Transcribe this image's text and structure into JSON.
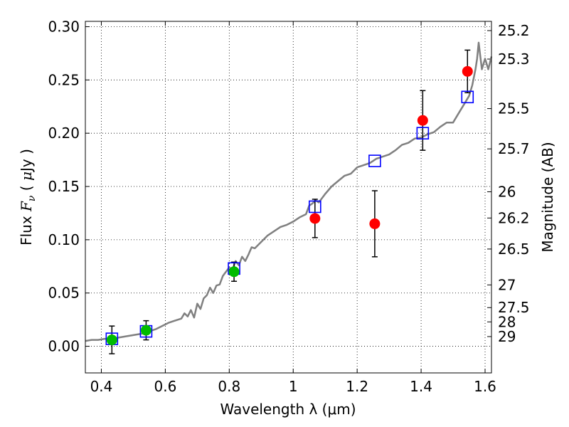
{
  "chart_data": {
    "type": "scatter",
    "xlabel": "Wavelength  λ (μm)",
    "ylabel_parts": {
      "prefix": "Flux  ",
      "symbol": "F",
      "sub": "ν",
      "mid": "  ( ",
      "unit_mu": "μ",
      "unit_rest": "Jy )"
    },
    "y2label": "Magnitude (AB)",
    "xlim": [
      0.35,
      1.62
    ],
    "ylim": [
      -0.025,
      0.305
    ],
    "grid": true,
    "xticks": [
      0.4,
      0.6,
      0.8,
      1.0,
      1.2,
      1.4,
      1.6
    ],
    "xtick_labels": [
      "0.4",
      "0.6",
      "0.8",
      "1",
      "1.2",
      "1.4",
      "1.6"
    ],
    "yticks": [
      0.0,
      0.05,
      0.1,
      0.15,
      0.2,
      0.25,
      0.3
    ],
    "ytick_labels": [
      "0.00",
      "0.05",
      "0.10",
      "0.15",
      "0.20",
      "0.25",
      "0.30"
    ],
    "y2ticks": [
      {
        "flux": 0.2963,
        "label": "25.2"
      },
      {
        "flux": 0.2696,
        "label": "25.3"
      },
      {
        "flux": 0.2231,
        "label": "25.5"
      },
      {
        "flux": 0.1853,
        "label": "25.7"
      },
      {
        "flux": 0.145,
        "label": "26"
      },
      {
        "flux": 0.1204,
        "label": "26.2"
      },
      {
        "flux": 0.0913,
        "label": "26.5"
      },
      {
        "flux": 0.0576,
        "label": "27"
      },
      {
        "flux": 0.0363,
        "label": "27.5"
      },
      {
        "flux": 0.0229,
        "label": "28"
      },
      {
        "flux": 0.0091,
        "label": "29"
      }
    ],
    "colors": {
      "spectrum": "#808080",
      "model": "#0000ff",
      "green": "#00bb00",
      "red": "#ff0000",
      "errorbar": "#000000"
    },
    "spectrum": {
      "x": [
        0.35,
        0.37,
        0.39,
        0.41,
        0.43,
        0.45,
        0.47,
        0.49,
        0.51,
        0.53,
        0.55,
        0.57,
        0.59,
        0.61,
        0.63,
        0.65,
        0.66,
        0.67,
        0.68,
        0.69,
        0.7,
        0.71,
        0.72,
        0.73,
        0.74,
        0.75,
        0.76,
        0.77,
        0.78,
        0.79,
        0.8,
        0.81,
        0.82,
        0.83,
        0.84,
        0.85,
        0.86,
        0.87,
        0.88,
        0.9,
        0.92,
        0.94,
        0.96,
        0.98,
        1.0,
        1.02,
        1.04,
        1.05,
        1.06,
        1.07,
        1.08,
        1.1,
        1.12,
        1.14,
        1.16,
        1.18,
        1.2,
        1.22,
        1.24,
        1.26,
        1.28,
        1.3,
        1.32,
        1.34,
        1.36,
        1.38,
        1.4,
        1.42,
        1.44,
        1.46,
        1.48,
        1.5,
        1.52,
        1.53,
        1.54,
        1.55,
        1.56,
        1.57,
        1.575,
        1.58,
        1.59,
        1.6,
        1.61,
        1.62
      ],
      "y": [
        0.005,
        0.006,
        0.006,
        0.007,
        0.007,
        0.008,
        0.009,
        0.01,
        0.011,
        0.012,
        0.014,
        0.016,
        0.019,
        0.022,
        0.024,
        0.026,
        0.031,
        0.028,
        0.034,
        0.027,
        0.04,
        0.035,
        0.045,
        0.048,
        0.055,
        0.05,
        0.057,
        0.058,
        0.066,
        0.07,
        0.074,
        0.072,
        0.08,
        0.076,
        0.084,
        0.08,
        0.086,
        0.093,
        0.092,
        0.098,
        0.104,
        0.108,
        0.112,
        0.114,
        0.117,
        0.121,
        0.124,
        0.132,
        0.134,
        0.137,
        0.135,
        0.143,
        0.15,
        0.155,
        0.16,
        0.162,
        0.168,
        0.17,
        0.172,
        0.176,
        0.178,
        0.18,
        0.184,
        0.189,
        0.191,
        0.195,
        0.196,
        0.199,
        0.201,
        0.206,
        0.21,
        0.21,
        0.22,
        0.225,
        0.23,
        0.235,
        0.245,
        0.26,
        0.27,
        0.285,
        0.26,
        0.27,
        0.26,
        0.272
      ]
    },
    "model_points": {
      "x": [
        0.433,
        0.54,
        0.815,
        1.068,
        1.255,
        1.405,
        1.545
      ],
      "y": [
        0.007,
        0.014,
        0.073,
        0.131,
        0.174,
        0.2,
        0.234
      ]
    },
    "green_points": {
      "x": [
        0.433,
        0.54,
        0.815
      ],
      "y": [
        0.006,
        0.015,
        0.07
      ],
      "err": [
        0.013,
        0.009,
        0.009
      ]
    },
    "red_points": {
      "x": [
        1.068,
        1.255,
        1.405,
        1.545
      ],
      "y": [
        0.12,
        0.115,
        0.212,
        0.258
      ],
      "err": [
        0.018,
        0.031,
        0.028,
        0.02
      ]
    }
  }
}
